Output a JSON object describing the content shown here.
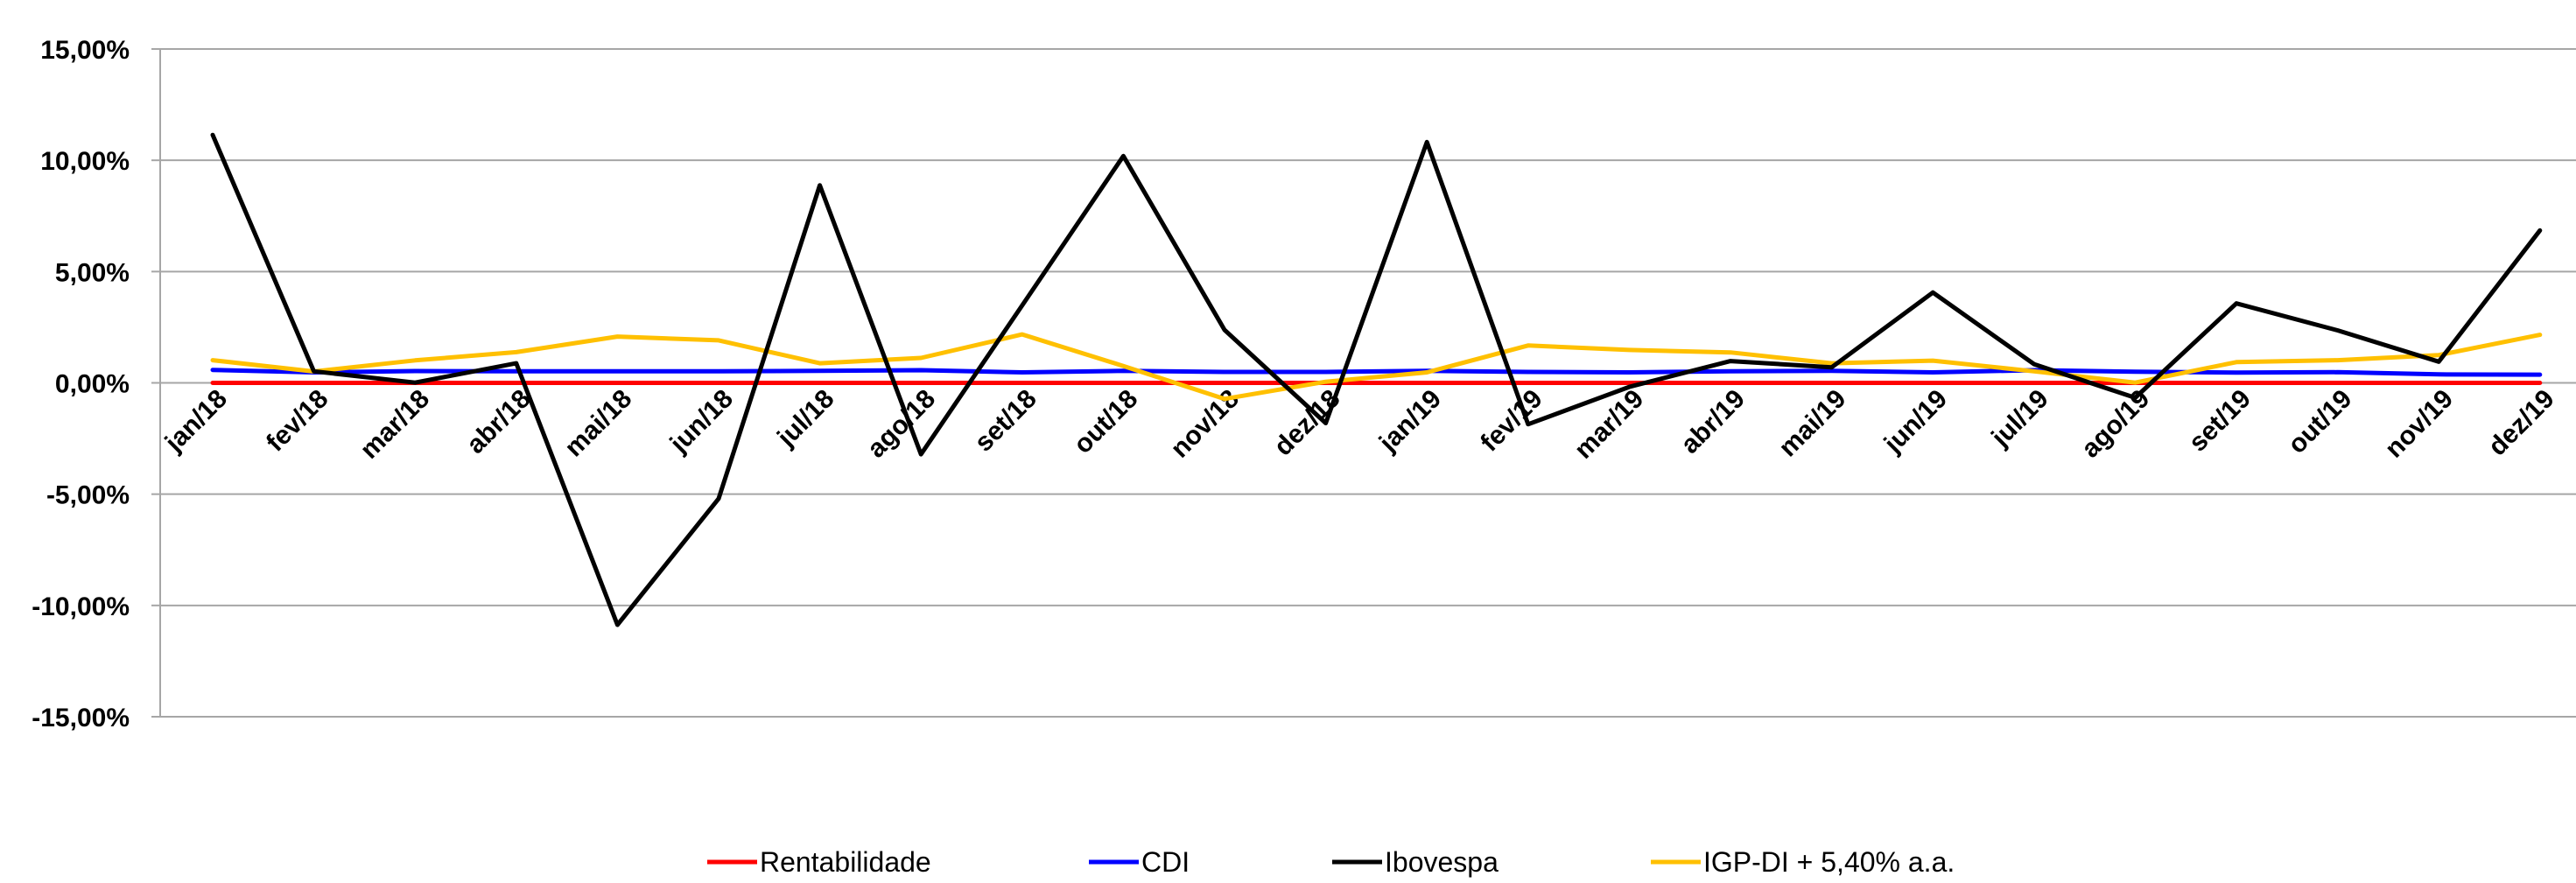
{
  "chart_data": {
    "type": "line",
    "title": "",
    "xlabel": "",
    "ylabel": "",
    "ylim": [
      -15,
      15
    ],
    "y_ticks": [
      15,
      10,
      5,
      0,
      -5,
      -10,
      -15
    ],
    "y_tick_labels": [
      "15,00%",
      "10,00%",
      "5,00%",
      "0,00%",
      "-5,00%",
      "-10,00%",
      "-15,00%"
    ],
    "grid": true,
    "legend_position": "bottom",
    "categories": [
      "jan/18",
      "fev/18",
      "mar/18",
      "abr/18",
      "mai/18",
      "jun/18",
      "jul/18",
      "ago/18",
      "set/18",
      "out/18",
      "nov/18",
      "dez/18",
      "jan/19",
      "fev/19",
      "mar/19",
      "abr/19",
      "mai/19",
      "jun/19",
      "jul/19",
      "ago/19",
      "set/19",
      "out/19",
      "nov/19",
      "dez/19"
    ],
    "series": [
      {
        "name": "Rentabilidade",
        "color": "#ff0000",
        "values": [
          0.0,
          0.0,
          0.0,
          0.0,
          0.0,
          0.0,
          0.0,
          0.0,
          0.0,
          0.0,
          0.0,
          0.0,
          0.0,
          0.0,
          0.0,
          0.0,
          0.0,
          0.0,
          0.0,
          0.0,
          0.0,
          0.0,
          0.0,
          0.0
        ]
      },
      {
        "name": "CDI",
        "color": "#0000ff",
        "values": [
          0.58,
          0.47,
          0.53,
          0.52,
          0.52,
          0.52,
          0.54,
          0.57,
          0.47,
          0.54,
          0.49,
          0.49,
          0.54,
          0.49,
          0.47,
          0.52,
          0.54,
          0.47,
          0.57,
          0.5,
          0.46,
          0.48,
          0.38,
          0.37
        ]
      },
      {
        "name": "Ibovespa",
        "color": "#000000",
        "values": [
          11.14,
          0.52,
          0.01,
          0.88,
          -10.87,
          -5.2,
          8.88,
          -3.21,
          3.48,
          10.19,
          2.38,
          -1.81,
          10.82,
          -1.86,
          -0.18,
          0.98,
          0.7,
          4.06,
          0.84,
          -0.67,
          3.57,
          2.36,
          0.95,
          6.85
        ]
      },
      {
        "name": "IGP-DI + 5,40% a.a.",
        "color": "#ffc000",
        "values": [
          1.02,
          0.51,
          1.01,
          1.38,
          2.08,
          1.91,
          0.88,
          1.12,
          2.18,
          0.76,
          -0.72,
          0.05,
          0.47,
          1.68,
          1.48,
          1.37,
          0.88,
          1.0,
          0.52,
          0.01,
          0.93,
          1.02,
          1.25,
          2.16
        ]
      }
    ]
  }
}
